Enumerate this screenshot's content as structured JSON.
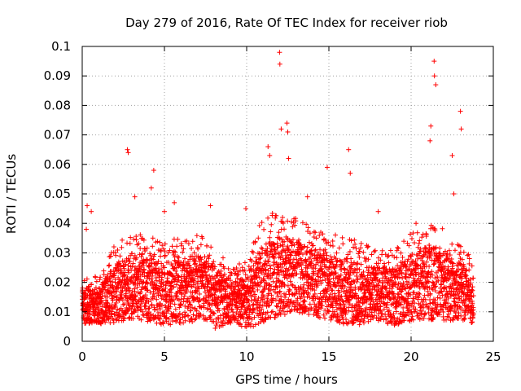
{
  "chart_data": {
    "type": "scatter",
    "title": "Day 279 of 2016, Rate Of TEC Index for receiver riob",
    "xlabel": "GPS time / hours",
    "ylabel": "ROTI / TECUs",
    "xlim": [
      0,
      25
    ],
    "ylim": [
      0,
      0.1
    ],
    "xticks": [
      0,
      5,
      10,
      15,
      20,
      25
    ],
    "xtick_labels": [
      "0",
      "5",
      "10",
      "15",
      "20",
      "25"
    ],
    "yticks": [
      0,
      0.01,
      0.02,
      0.03,
      0.04,
      0.05,
      0.06,
      0.07,
      0.08,
      0.09,
      0.1
    ],
    "ytick_labels": [
      "0",
      "0.01",
      "0.02",
      "0.03",
      "0.04",
      "0.05",
      "0.06",
      "0.07",
      "0.08",
      "0.09",
      "0.1"
    ],
    "grid": true,
    "marker": "plus",
    "color": "#ff0000",
    "series": [
      {
        "name": "ROTI",
        "envelope_by_hour": {
          "hour": [
            0,
            1,
            2,
            3,
            4,
            5,
            6,
            7,
            8,
            9,
            10,
            11,
            12,
            13,
            14,
            15,
            16,
            17,
            18,
            19,
            20,
            21,
            22,
            23,
            23.8
          ],
          "typical": [
            0.012,
            0.012,
            0.016,
            0.018,
            0.018,
            0.016,
            0.017,
            0.018,
            0.015,
            0.013,
            0.013,
            0.02,
            0.022,
            0.022,
            0.02,
            0.018,
            0.017,
            0.016,
            0.016,
            0.015,
            0.018,
            0.02,
            0.019,
            0.017,
            0.014
          ],
          "upper": [
            0.02,
            0.02,
            0.03,
            0.032,
            0.033,
            0.03,
            0.032,
            0.033,
            0.03,
            0.022,
            0.025,
            0.038,
            0.04,
            0.038,
            0.035,
            0.033,
            0.032,
            0.03,
            0.028,
            0.028,
            0.033,
            0.037,
            0.035,
            0.03,
            0.025
          ]
        },
        "peaks": [
          {
            "x": 0.3,
            "y": 0.046
          },
          {
            "x": 0.25,
            "y": 0.038
          },
          {
            "x": 0.55,
            "y": 0.044
          },
          {
            "x": 2.75,
            "y": 0.065
          },
          {
            "x": 2.8,
            "y": 0.064
          },
          {
            "x": 3.2,
            "y": 0.049
          },
          {
            "x": 4.2,
            "y": 0.052
          },
          {
            "x": 4.35,
            "y": 0.058
          },
          {
            "x": 5.0,
            "y": 0.044
          },
          {
            "x": 5.6,
            "y": 0.047
          },
          {
            "x": 7.8,
            "y": 0.046
          },
          {
            "x": 9.95,
            "y": 0.045
          },
          {
            "x": 11.3,
            "y": 0.066
          },
          {
            "x": 11.4,
            "y": 0.063
          },
          {
            "x": 12.0,
            "y": 0.098
          },
          {
            "x": 12.02,
            "y": 0.094
          },
          {
            "x": 12.1,
            "y": 0.072
          },
          {
            "x": 12.45,
            "y": 0.074
          },
          {
            "x": 12.5,
            "y": 0.071
          },
          {
            "x": 12.55,
            "y": 0.062
          },
          {
            "x": 13.7,
            "y": 0.049
          },
          {
            "x": 14.9,
            "y": 0.059
          },
          {
            "x": 16.2,
            "y": 0.065
          },
          {
            "x": 16.3,
            "y": 0.057
          },
          {
            "x": 18.0,
            "y": 0.044
          },
          {
            "x": 20.3,
            "y": 0.04
          },
          {
            "x": 21.2,
            "y": 0.073
          },
          {
            "x": 21.15,
            "y": 0.068
          },
          {
            "x": 21.4,
            "y": 0.095
          },
          {
            "x": 21.42,
            "y": 0.09
          },
          {
            "x": 21.5,
            "y": 0.087
          },
          {
            "x": 22.6,
            "y": 0.05
          },
          {
            "x": 22.5,
            "y": 0.063
          },
          {
            "x": 23.0,
            "y": 0.078
          },
          {
            "x": 23.05,
            "y": 0.072
          }
        ]
      }
    ]
  }
}
